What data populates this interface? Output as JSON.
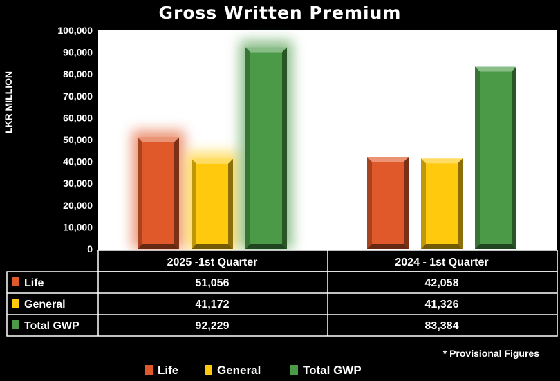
{
  "chart_data": {
    "type": "bar",
    "title": "Gross Written Premium",
    "ylabel": "LKR MILLION",
    "ylim": [
      0,
      100000
    ],
    "yticks": [
      "0",
      "10,000",
      "20,000",
      "30,000",
      "40,000",
      "50,000",
      "60,000",
      "70,000",
      "80,000",
      "90,000",
      "100,000"
    ],
    "categories": [
      "2025 -1st Quarter",
      "2024 - 1st  Quarter"
    ],
    "series": [
      {
        "name": "Life",
        "values": [
          51056,
          42058
        ],
        "labels": [
          "51,056",
          "42,058"
        ],
        "color": "#e0592a"
      },
      {
        "name": "General",
        "values": [
          41172,
          41326
        ],
        "labels": [
          "41,172",
          "41,326"
        ],
        "color": "#ffc90e"
      },
      {
        "name": "Total GWP",
        "values": [
          92229,
          83384
        ],
        "labels": [
          "92,229",
          "83,384"
        ],
        "color": "#4a9a47"
      }
    ],
    "legend_position": "bottom",
    "grid": false,
    "data_table": true
  },
  "note": "* Provisional Figures"
}
